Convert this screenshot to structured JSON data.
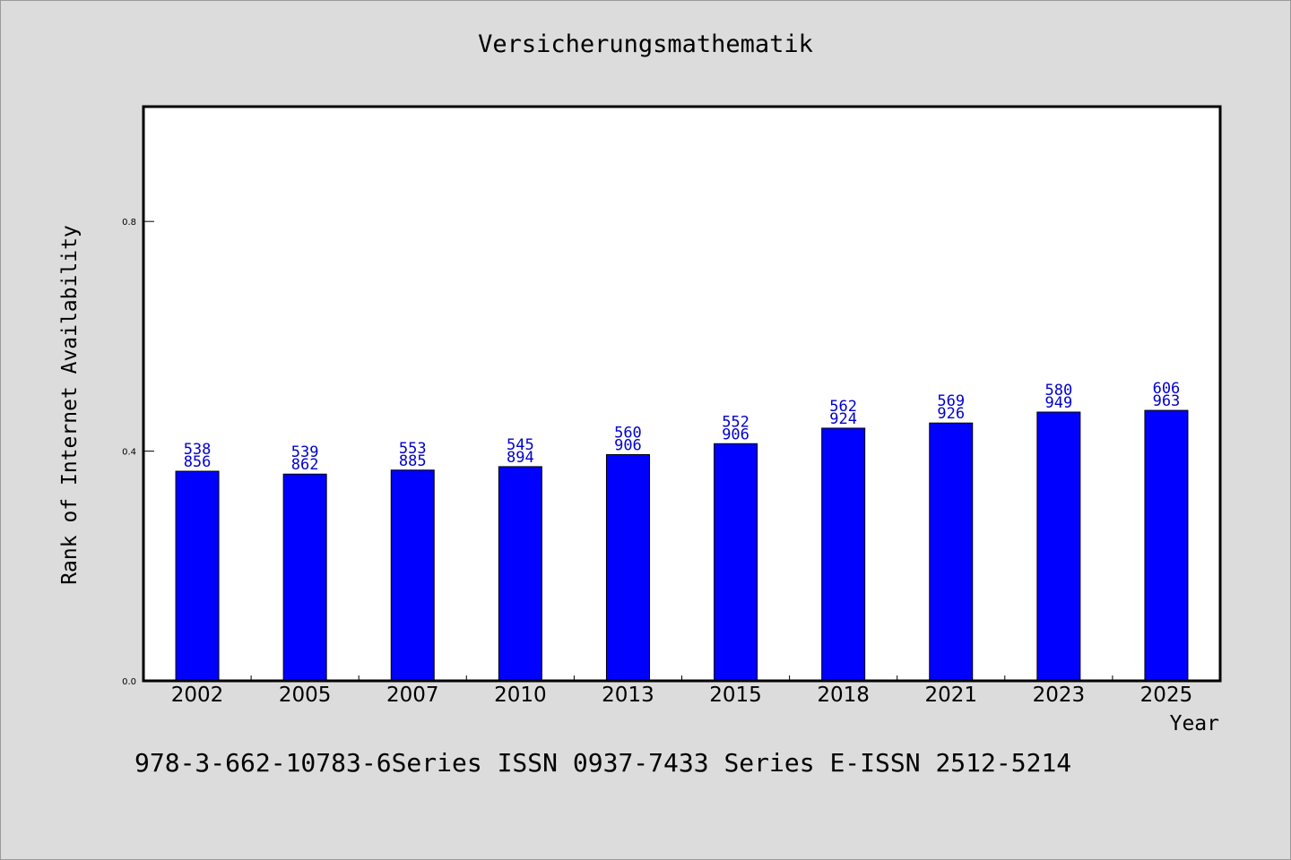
{
  "chart_data": {
    "type": "bar",
    "title": "Versicherungsmathematik",
    "xlabel": "Year",
    "ylabel": "Rank of Internet Availability",
    "categories": [
      "2002",
      "2005",
      "2007",
      "2010",
      "2013",
      "2015",
      "2018",
      "2021",
      "2023",
      "2025"
    ],
    "values": [
      0.365,
      0.36,
      0.367,
      0.373,
      0.394,
      0.413,
      0.44,
      0.449,
      0.468,
      0.471
    ],
    "data_labels": [
      [
        "538",
        "856"
      ],
      [
        "539",
        "862"
      ],
      [
        "553",
        "885"
      ],
      [
        "545",
        "894"
      ],
      [
        "560",
        "906"
      ],
      [
        "552",
        "906"
      ],
      [
        "562",
        "924"
      ],
      [
        "569",
        "926"
      ],
      [
        "580",
        "949"
      ],
      [
        "606",
        "963"
      ]
    ],
    "ylim": [
      0,
      1.0
    ],
    "yticks": [
      "0.0",
      "0.4",
      "0.8"
    ],
    "grid": false,
    "bar_color": "#0000ff",
    "label_color": "#0000cc"
  },
  "footer_text": "978-3-662-10783-6Series ISSN 0937-7433 Series E-ISSN 2512-5214"
}
